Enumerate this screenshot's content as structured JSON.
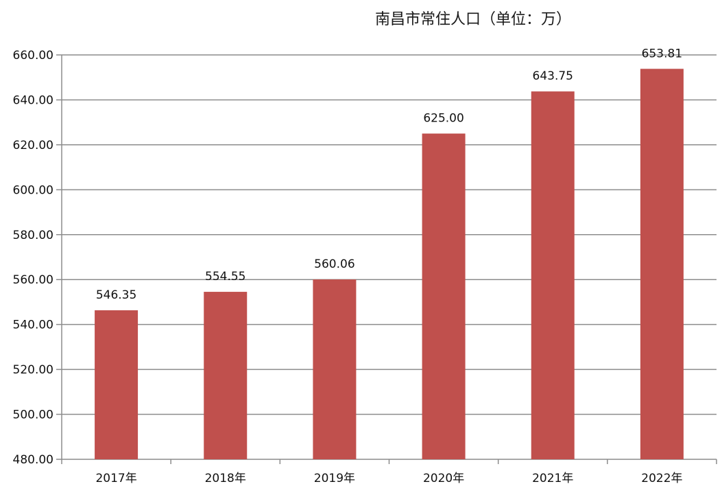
{
  "chart_data": {
    "type": "bar",
    "title": "南昌市常住人口（单位：万）",
    "categories": [
      "2017年",
      "2018年",
      "2019年",
      "2020年",
      "2021年",
      "2022年"
    ],
    "series": [
      {
        "values": [
          546.35,
          554.55,
          560.06,
          625.0,
          643.75,
          653.81
        ],
        "data_labels": [
          "546.35",
          "554.55",
          "560.06",
          "625.00",
          "643.75",
          "653.81"
        ]
      }
    ],
    "ylim": [
      480,
      660
    ],
    "y_ticks": [
      "480.00",
      "500.00",
      "520.00",
      "540.00",
      "560.00",
      "580.00",
      "600.00",
      "620.00",
      "640.00",
      "660.00"
    ],
    "xlabel": "",
    "ylabel": "",
    "grid": true,
    "legend": "none",
    "colors": {
      "bar": "#c0504d",
      "grid": "#8c8c8c",
      "axis": "#8c8c8c",
      "text": "#111111"
    }
  }
}
